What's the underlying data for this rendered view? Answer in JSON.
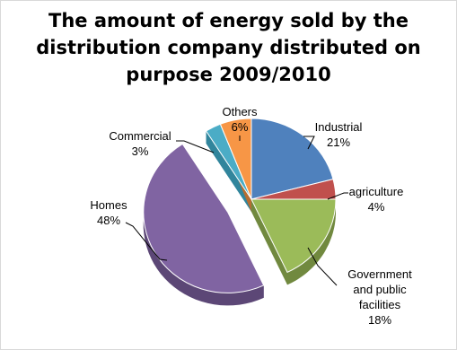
{
  "chart_data": {
    "type": "pie",
    "style": "3d-exploded",
    "title_lines": [
      "The amount of energy sold by the",
      "distribution company distributed on",
      "purpose 2009/2010"
    ],
    "slices": [
      {
        "name": "Industrial",
        "label": "21%",
        "value": 21,
        "color": "#4f81bd",
        "side": "#385d8a"
      },
      {
        "name": "agriculture",
        "label": "4%",
        "value": 4,
        "color": "#c0504d",
        "side": "#8c3836"
      },
      {
        "name_lines": [
          "Government",
          "and public",
          "facilities"
        ],
        "label": "18%",
        "value": 18,
        "color": "#9bbb59",
        "side": "#71893f"
      },
      {
        "name": "Homes",
        "label": "48%",
        "value": 48,
        "color": "#8064a2",
        "side": "#5c4776",
        "exploded": true
      },
      {
        "name": "Commercial",
        "label": "3%",
        "value": 3,
        "color": "#4bacc6",
        "side": "#31859c"
      },
      {
        "name": "Others",
        "label": "6%",
        "value": 6,
        "color": "#f79646",
        "side": "#b66d31"
      }
    ],
    "legend": "none",
    "data_labels": "outside-with-leader-lines"
  }
}
